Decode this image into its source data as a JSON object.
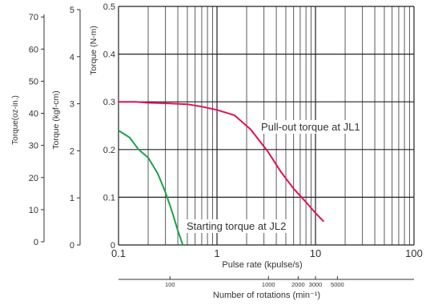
{
  "chart_data": {
    "type": "line",
    "x_scale": "log",
    "xlabel": "Pulse rate (kpulse/s)",
    "xlim": [
      0.1,
      100
    ],
    "x_ticks": [
      "0.1",
      "1",
      "10",
      "100"
    ],
    "y_axes": [
      {
        "id": "nm",
        "title": "Torque (N-m)",
        "ticks": [
          "0",
          "0.1",
          "0.2",
          "0.3",
          "0.4",
          "0.5"
        ],
        "max": 0.5
      },
      {
        "id": "kgf",
        "title": "Torque (kgf-cm)",
        "ticks": [
          "0",
          "1",
          "2",
          "3",
          "4",
          "5"
        ],
        "max": 5
      },
      {
        "id": "oz",
        "title": "Torque(oz-in.)",
        "ticks": [
          "0",
          "10",
          "20",
          "30",
          "40",
          "50",
          "60",
          "70"
        ],
        "max": 70.8
      }
    ],
    "secondary_x_axis": {
      "title": "Number of rotations (min⁻¹)",
      "ticks": [
        {
          "label": "100",
          "pulse_rate": 0.333
        },
        {
          "label": "1000",
          "pulse_rate": 3.33
        },
        {
          "label": "2000",
          "pulse_rate": 6.67
        },
        {
          "label": "3000",
          "pulse_rate": 10
        },
        {
          "label": "5000",
          "pulse_rate": 16.7
        }
      ]
    },
    "grid": true,
    "series": [
      {
        "name": "Pull-out torque",
        "annotation": "Pull-out  torque at JL1",
        "color": "#e0105a",
        "x": [
          0.1,
          0.15,
          0.2,
          0.3,
          0.5,
          0.7,
          1.0,
          1.5,
          2.2,
          3.3,
          4.5,
          6,
          8,
          10,
          12
        ],
        "y": [
          0.3,
          0.3,
          0.298,
          0.297,
          0.295,
          0.29,
          0.283,
          0.272,
          0.242,
          0.195,
          0.152,
          0.118,
          0.09,
          0.067,
          0.05
        ]
      },
      {
        "name": "Starting torque",
        "annotation": "Starting torque at JL2",
        "color": "#1aa34a",
        "x": [
          0.1,
          0.13,
          0.16,
          0.2,
          0.25,
          0.3,
          0.35,
          0.4,
          0.45
        ],
        "y": [
          0.24,
          0.225,
          0.2,
          0.183,
          0.15,
          0.11,
          0.07,
          0.03,
          0.0
        ]
      }
    ]
  }
}
